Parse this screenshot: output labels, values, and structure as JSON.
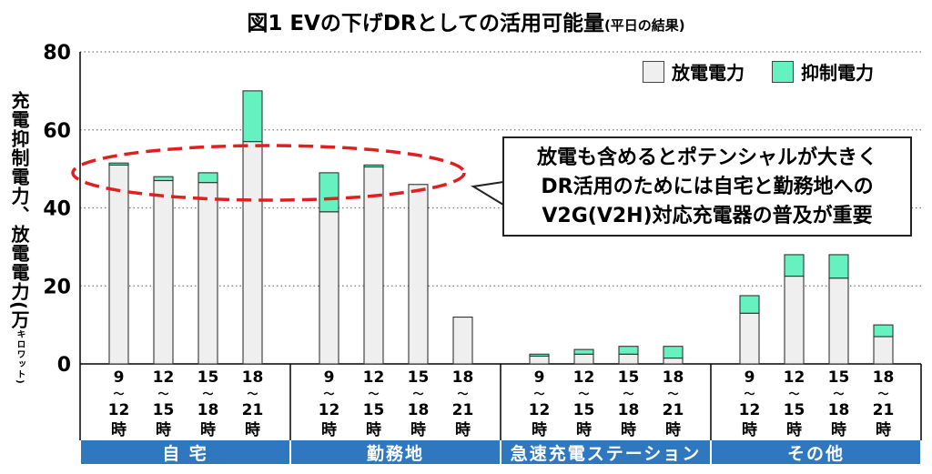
{
  "title": "図1 EVの下げDRとしての活用可能量",
  "subtitle": "(平日の結果)",
  "ylabel": "充電抑制電力、放電電力(万",
  "yunit": "キロワット)",
  "legend": [
    {
      "name": "放電電力",
      "color": "#efefef"
    },
    {
      "name": "抑制電力",
      "color": "#66f2c0"
    }
  ],
  "callout": {
    "line1": "放電も含めるとポテンシャルが大きく",
    "line2": "DR活用のためには自宅と勤務地への",
    "line3": "V2G(V2H)対応充電器の普及が重要"
  },
  "chart_data": {
    "type": "bar",
    "stacked": true,
    "ylim": [
      0,
      80
    ],
    "yticks": [
      0,
      20,
      40,
      60,
      80
    ],
    "grid": true,
    "groups": [
      "自 宅",
      "勤務地",
      "急速充電ステーション",
      "その他"
    ],
    "categories": [
      "9〜12時",
      "12〜15時",
      "15〜18時",
      "18〜21時"
    ],
    "series": [
      {
        "name": "放電電力",
        "color": "#efefef",
        "values": [
          [
            51,
            47,
            46.5,
            57
          ],
          [
            39,
            50.5,
            46,
            12
          ],
          [
            2,
            2.5,
            2.5,
            1.5
          ],
          [
            13,
            22.5,
            22,
            7
          ]
        ]
      },
      {
        "name": "抑制電力",
        "color": "#66f2c0",
        "values": [
          [
            0.5,
            1,
            2.5,
            13
          ],
          [
            10,
            0.5,
            0,
            0
          ],
          [
            0.5,
            1.2,
            2,
            3
          ],
          [
            4.5,
            5.5,
            6,
            3
          ]
        ]
      }
    ]
  }
}
